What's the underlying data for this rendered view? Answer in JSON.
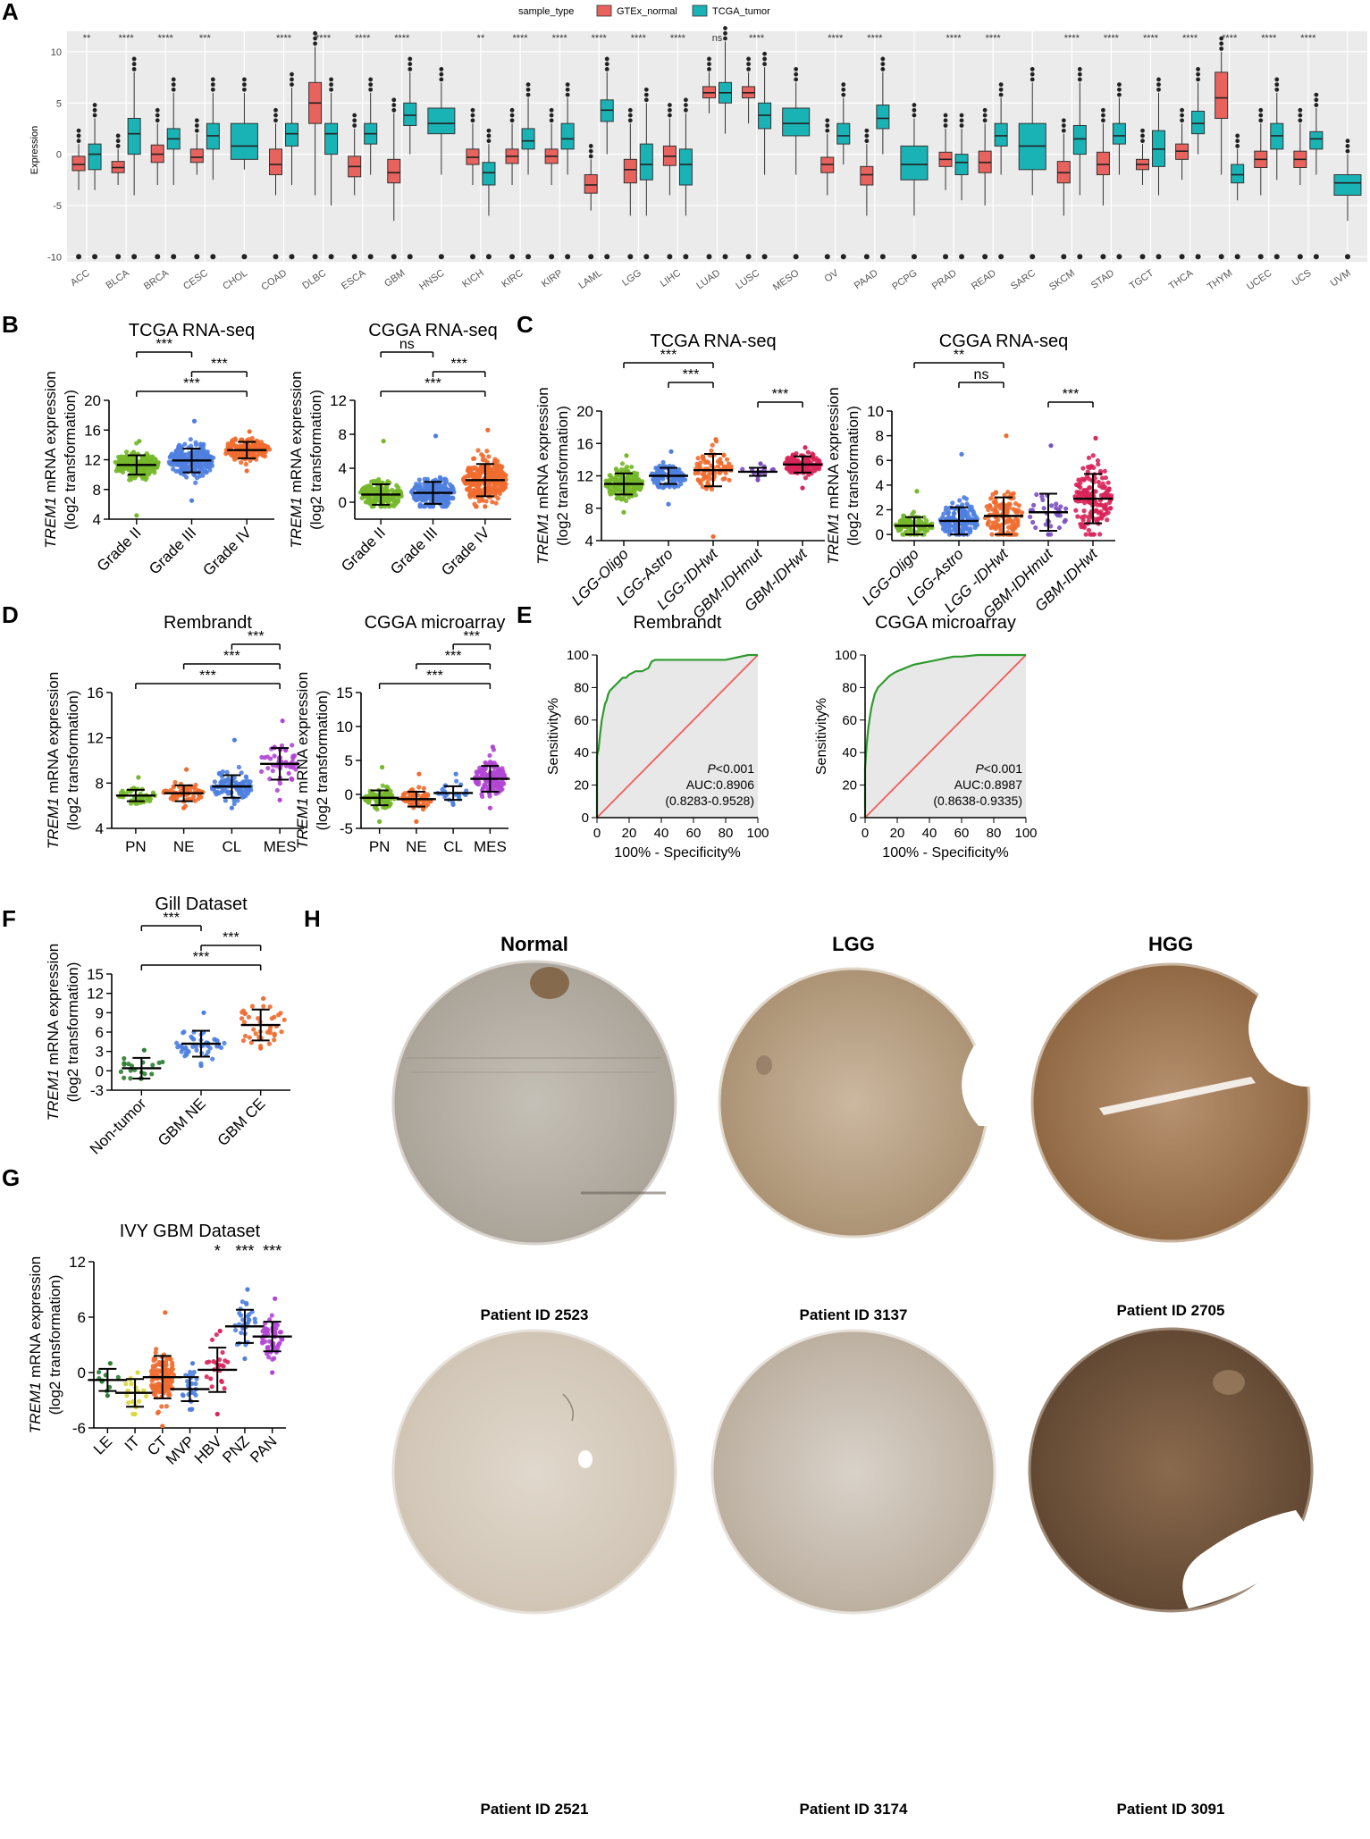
{
  "colors": {
    "normal": "#e8625e",
    "tumor": "#19b3b6",
    "green": "#76b82a",
    "blue": "#4f7fe0",
    "orange": "#ef6b2f",
    "purple": "#7b4fc0",
    "red": "#d8255a",
    "violet": "#b146d4",
    "darkgreen": "#2e7d32",
    "yellow": "#d8d83a",
    "roc_line": "#2e9a2e",
    "roc_ref": "#f05c5c"
  },
  "panelA": {
    "letter": "A",
    "legend_title": "sample_type",
    "legend_normal": "GTEx_normal",
    "legend_tumor": "TCGA_tumor",
    "ylabel": "Expression",
    "chart_data": {
      "type": "box",
      "ylim": [
        -10.5,
        12
      ],
      "yticks": [
        "-10",
        "-5",
        "0",
        "5",
        "10"
      ],
      "categories": [
        "ACC",
        "BLCA",
        "BRCA",
        "CESC",
        "CHOL",
        "COAD",
        "DLBC",
        "ESCA",
        "GBM",
        "HNSC",
        "KICH",
        "KIRC",
        "KIRP",
        "LAML",
        "LGG",
        "LIHC",
        "LUAD",
        "LUSC",
        "MESO",
        "OV",
        "PAAD",
        "PCPG",
        "PRAD",
        "READ",
        "SARC",
        "SKCM",
        "STAD",
        "TGCT",
        "THCA",
        "THYM",
        "UCEC",
        "UCS",
        "UVM"
      ],
      "significance": [
        "**",
        "****",
        "****",
        "***",
        "",
        "****",
        "****",
        "****",
        "****",
        "",
        "**",
        "****",
        "****",
        "****",
        "****",
        "****",
        "ns",
        "****",
        "",
        "****",
        "****",
        "",
        "****",
        "****",
        "",
        "****",
        "****",
        "****",
        "****",
        "****",
        "****",
        "****",
        ""
      ],
      "normal": [
        [
          -1,
          -1.6,
          -0.2,
          -3.5,
          1
        ],
        [
          -1.3,
          -1.8,
          -0.7,
          -3,
          0.5
        ],
        [
          0,
          -0.8,
          0.9,
          -3,
          3
        ],
        [
          -0.3,
          -0.8,
          0.5,
          -2,
          2
        ],
        null,
        [
          -1,
          -2,
          0.5,
          -4,
          3
        ],
        [
          5,
          3,
          7,
          -4,
          10.5
        ],
        [
          -1.2,
          -2.2,
          -0.2,
          -4,
          2.5
        ],
        [
          -1.8,
          -2.8,
          -0.5,
          -6.5,
          4
        ],
        null,
        [
          -0.3,
          -1,
          0.5,
          -3,
          3
        ],
        [
          -0.2,
          -0.9,
          0.5,
          -3,
          3
        ],
        [
          -0.2,
          -0.9,
          0.5,
          -3,
          3
        ],
        [
          -3,
          -3.8,
          -2,
          -5.5,
          -0.5
        ],
        [
          -1.5,
          -2.8,
          -0.5,
          -6,
          3
        ],
        [
          -0.2,
          -1.1,
          0.8,
          -4,
          3.5
        ],
        [
          6,
          5.5,
          6.6,
          4,
          8
        ],
        [
          6,
          5.5,
          6.6,
          3,
          8
        ],
        null,
        [
          -1,
          -1.8,
          -0.3,
          -4,
          2
        ],
        [
          -2,
          -3,
          -1.2,
          -6,
          1
        ],
        null,
        [
          -0.5,
          -1.2,
          0.2,
          -3.5,
          2.5
        ],
        [
          -0.8,
          -1.8,
          0.3,
          -5,
          3
        ],
        null,
        [
          -1.8,
          -2.8,
          -0.7,
          -6,
          2
        ],
        [
          -1,
          -2,
          0.2,
          -5,
          3
        ],
        [
          -1,
          -1.5,
          -0.5,
          -3,
          1
        ],
        [
          0.3,
          -0.5,
          1,
          -2.5,
          3
        ],
        [
          5.5,
          3.5,
          8,
          -2,
          10
        ],
        [
          -0.5,
          -1.3,
          0.3,
          -4,
          3
        ],
        [
          -0.5,
          -1.3,
          0.3,
          -3,
          3
        ],
        null
      ],
      "tumor": [
        [
          0,
          -1.5,
          1,
          -3.5,
          3.5
        ],
        [
          2,
          0,
          3.5,
          -4,
          8
        ],
        [
          1.5,
          0.5,
          2.5,
          -3,
          6
        ],
        [
          1.8,
          0.5,
          3,
          -2.5,
          6
        ],
        [
          0.8,
          -0.5,
          3,
          -1.5,
          6
        ],
        [
          2,
          0.8,
          3,
          -3,
          6.5
        ],
        [
          2,
          0,
          3,
          -5,
          6
        ],
        [
          2,
          1,
          3,
          -2,
          6
        ],
        [
          3.8,
          2.8,
          5,
          0,
          8
        ],
        [
          3,
          2,
          4.5,
          -2,
          7
        ],
        [
          -1.8,
          -3,
          -0.8,
          -6,
          1
        ],
        [
          1.3,
          0.5,
          2.5,
          -2,
          5.5
        ],
        [
          1.5,
          0.5,
          3,
          -2,
          5.5
        ],
        [
          4.3,
          3.2,
          5.3,
          0,
          8
        ],
        [
          -1,
          -2.5,
          1,
          -6,
          5
        ],
        [
          -1,
          -3,
          0.5,
          -6,
          4
        ],
        [
          6,
          5,
          7,
          2,
          11
        ],
        [
          3.8,
          2.5,
          5,
          -2,
          8.5
        ],
        [
          3,
          1.8,
          4.5,
          -2,
          7
        ],
        [
          1.8,
          1,
          3,
          -1,
          5.5
        ],
        [
          3.5,
          2.5,
          4.8,
          0,
          8
        ],
        [
          -1,
          -2.5,
          0.8,
          -6,
          3.5
        ],
        [
          -0.8,
          -2,
          0,
          -4.5,
          2.5
        ],
        [
          1.8,
          0.8,
          3,
          -2,
          5.5
        ],
        [
          0.8,
          -1.5,
          3,
          -4,
          7
        ],
        [
          1.5,
          0,
          2.8,
          -4,
          7
        ],
        [
          1.8,
          1,
          3,
          -2,
          5.5
        ],
        [
          0.5,
          -1.2,
          2.3,
          -4,
          6
        ],
        [
          3,
          2,
          4.2,
          0,
          7
        ],
        [
          -2,
          -2.8,
          -1,
          -4.5,
          0.5
        ],
        [
          1.8,
          0.5,
          3,
          -2.5,
          6
        ],
        [
          1.5,
          0.5,
          2.2,
          -2,
          4.5
        ],
        [
          -2.8,
          -4,
          -2,
          -6.5,
          0
        ]
      ]
    }
  },
  "panelB": {
    "letter": "B",
    "ylabel_gene": "TREM1",
    "ylabel_rest": " mRNA expression",
    "ylabel2": "(log2 transformation)",
    "charts": [
      {
        "title": "TCGA RNA-seq",
        "type": "scatter-dot",
        "ylim": [
          4,
          20
        ],
        "yticks": [
          "4",
          "8",
          "12",
          "16",
          "20"
        ],
        "categories": [
          "Grade II",
          "Grade III",
          "Grade IV"
        ],
        "means": [
          11.3,
          11.9,
          13.3
        ],
        "sds": [
          1.3,
          1.6,
          1.1
        ],
        "ranges": [
          [
            4.5,
            14.5
          ],
          [
            6.5,
            17.2
          ],
          [
            10.5,
            15.8
          ]
        ],
        "brackets": [
          {
            "from": 0,
            "to": 1,
            "label": "***"
          },
          {
            "from": 1,
            "to": 2,
            "label": "***"
          },
          {
            "from": 0,
            "to": 2,
            "label": "***"
          }
        ]
      },
      {
        "title": "CGGA RNA-seq",
        "type": "scatter-dot",
        "ylim": [
          -2,
          12
        ],
        "yticks": [
          "0",
          "4",
          "8",
          "12"
        ],
        "categories": [
          "Grade II",
          "Grade III",
          "Grade IV"
        ],
        "means": [
          0.9,
          1.1,
          2.6
        ],
        "sds": [
          1.2,
          1.3,
          1.9
        ],
        "ranges": [
          [
            -0.5,
            7.2
          ],
          [
            -0.5,
            7.8
          ],
          [
            -0.5,
            8.5
          ]
        ],
        "brackets": [
          {
            "from": 0,
            "to": 1,
            "label": "ns"
          },
          {
            "from": 1,
            "to": 2,
            "label": "***"
          },
          {
            "from": 0,
            "to": 2,
            "label": "***"
          }
        ]
      }
    ]
  },
  "panelC": {
    "letter": "C",
    "charts": [
      {
        "title": "TCGA RNA-seq",
        "type": "scatter-dot",
        "ylim": [
          4,
          20
        ],
        "yticks": [
          "4",
          "8",
          "12",
          "16",
          "20"
        ],
        "categories": [
          "LGG-Oligo",
          "LGG-Astro",
          "LGG-IDHwt",
          "GBM-IDHmut",
          "GBM-IDHwt"
        ],
        "means": [
          11,
          12,
          12.7,
          12.5,
          13.4
        ],
        "sds": [
          1.3,
          1,
          2,
          0.5,
          1
        ],
        "ranges": [
          [
            7.5,
            14.5
          ],
          [
            8.5,
            15
          ],
          [
            4.5,
            16.5
          ],
          [
            11.5,
            13.5
          ],
          [
            10.5,
            15.5
          ]
        ],
        "brackets": [
          {
            "from": 0,
            "to": 2,
            "label": "***"
          },
          {
            "from": 1,
            "to": 2,
            "label": "***"
          },
          {
            "from": 3,
            "to": 4,
            "label": "***"
          }
        ]
      },
      {
        "title": "CGGA RNA-seq",
        "type": "scatter-dot",
        "ylim": [
          -0.5,
          10
        ],
        "yticks": [
          "0",
          "2",
          "4",
          "6",
          "8",
          "10"
        ],
        "categories": [
          "LGG-Oligo",
          "LGG-Astro",
          "LGG -IDHwt",
          "GBM-IDHmut",
          "GBM-IDHwt"
        ],
        "means": [
          0.7,
          1.1,
          1.5,
          1.8,
          2.9
        ],
        "sds": [
          0.7,
          1.1,
          1.5,
          1.5,
          2
        ],
        "ranges": [
          [
            0,
            3.5
          ],
          [
            0,
            6.5
          ],
          [
            0,
            8
          ],
          [
            0,
            7.2
          ],
          [
            0,
            7.8
          ]
        ],
        "brackets": [
          {
            "from": 0,
            "to": 2,
            "label": "**"
          },
          {
            "from": 1,
            "to": 2,
            "label": "ns"
          },
          {
            "from": 3,
            "to": 4,
            "label": "***"
          }
        ]
      }
    ]
  },
  "panelD": {
    "letter": "D",
    "charts": [
      {
        "title": "Rembrandt",
        "type": "scatter-dot",
        "ylim": [
          4,
          16
        ],
        "yticks": [
          "4",
          "8",
          "12",
          "16"
        ],
        "categories": [
          "PN",
          "NE",
          "CL",
          "MES"
        ],
        "means": [
          6.9,
          7.1,
          7.7,
          9.7
        ],
        "sds": [
          0.5,
          0.7,
          1,
          1.4
        ],
        "ranges": [
          [
            6.2,
            8.5
          ],
          [
            5.8,
            9.2
          ],
          [
            5.8,
            11.8
          ],
          [
            6.5,
            13.5
          ]
        ],
        "brackets": [
          {
            "from": 2,
            "to": 3,
            "label": "***"
          },
          {
            "from": 1,
            "to": 3,
            "label": "***"
          },
          {
            "from": 0,
            "to": 3,
            "label": "***"
          }
        ]
      },
      {
        "title": "CGGA microarray",
        "type": "scatter-dot",
        "ylim": [
          -5,
          15
        ],
        "yticks": [
          "-5",
          "0",
          "5",
          "10",
          "15"
        ],
        "categories": [
          "PN",
          "NE",
          "CL",
          "MES"
        ],
        "means": [
          -0.5,
          -0.7,
          0.2,
          2.3
        ],
        "sds": [
          1.1,
          1.1,
          1,
          1.9
        ],
        "ranges": [
          [
            -4,
            4
          ],
          [
            -4,
            3
          ],
          [
            -1.5,
            3
          ],
          [
            -2,
            7
          ]
        ],
        "brackets": [
          {
            "from": 2,
            "to": 3,
            "label": "***"
          },
          {
            "from": 1,
            "to": 3,
            "label": "***"
          },
          {
            "from": 0,
            "to": 3,
            "label": "***"
          }
        ]
      }
    ]
  },
  "panelE": {
    "letter": "E",
    "xlabel": "100% - Specificity%",
    "ylabel": "Sensitivity%",
    "ticks": [
      "0",
      "20",
      "40",
      "60",
      "80",
      "100"
    ],
    "charts": [
      {
        "title": "Rembrandt",
        "type": "line",
        "p_label": "P",
        "p_value": "<0.001",
        "auc": "AUC:0.8906",
        "ci": "(0.8283-0.9528)",
        "x": [
          0,
          0,
          1,
          2,
          3,
          4,
          5,
          6,
          7,
          8,
          10,
          12,
          14,
          16,
          18,
          20,
          24,
          28,
          32,
          34,
          36,
          40,
          60,
          80,
          94,
          100
        ],
        "y": [
          0,
          38,
          42,
          52,
          60,
          65,
          70,
          72,
          76,
          78,
          80,
          82,
          84,
          86,
          86,
          88,
          90,
          90,
          92,
          96,
          97,
          97,
          97,
          97,
          100,
          100
        ]
      },
      {
        "title": "CGGA microarray",
        "type": "line",
        "p_label": "P",
        "p_value": "<0.001",
        "auc": "AUC:0.8987",
        "ci": "(0.8638-0.9335)",
        "x": [
          0,
          0,
          1,
          2,
          3,
          4,
          5,
          6,
          8,
          10,
          12,
          15,
          18,
          20,
          25,
          30,
          35,
          40,
          45,
          50,
          55,
          60,
          70,
          80,
          100
        ],
        "y": [
          0,
          30,
          45,
          55,
          62,
          68,
          72,
          76,
          80,
          82,
          84,
          87,
          89,
          90,
          92,
          94,
          95,
          96,
          97,
          98,
          99,
          99,
          100,
          100,
          100
        ]
      }
    ]
  },
  "panelF": {
    "letter": "F",
    "chart": {
      "title": "Gill Dataset",
      "type": "scatter-dot",
      "ylim": [
        -3,
        15
      ],
      "yticks": [
        "-3",
        "0",
        "3",
        "6",
        "9",
        "12",
        "15"
      ],
      "categories": [
        "Non-tumor",
        "GBM NE",
        "GBM CE"
      ],
      "means": [
        0.4,
        4.2,
        7.1
      ],
      "sds": [
        1.6,
        2,
        2.4
      ],
      "ranges": [
        [
          -1.2,
          3.2
        ],
        [
          0.8,
          9
        ],
        [
          3.5,
          11.2
        ]
      ],
      "brackets": [
        {
          "from": 0,
          "to": 1,
          "label": "***"
        },
        {
          "from": 1,
          "to": 2,
          "label": "***"
        },
        {
          "from": 0,
          "to": 2,
          "label": "***"
        }
      ]
    }
  },
  "panelG": {
    "letter": "G",
    "chart": {
      "title": "IVY GBM Dataset",
      "type": "scatter-dot",
      "ylim": [
        -6,
        12
      ],
      "yticks": [
        "-6",
        "0",
        "6",
        "12"
      ],
      "categories": [
        "LE",
        "IT",
        "CT",
        "MVP",
        "HBV",
        "PNZ",
        "PAN"
      ],
      "means": [
        -0.8,
        -2.2,
        -0.5,
        -1.8,
        0.3,
        5,
        3.9
      ],
      "sds": [
        1.2,
        1.5,
        2.3,
        1.3,
        2.4,
        1.8,
        1.6
      ],
      "ranges": [
        [
          -2.5,
          1
        ],
        [
          -4.5,
          0
        ],
        [
          -5.8,
          6.5
        ],
        [
          -4,
          1
        ],
        [
          -4.5,
          4.5
        ],
        [
          1.5,
          9
        ],
        [
          0,
          8
        ]
      ],
      "stars": [
        "",
        "",
        "",
        "",
        "*",
        "***",
        "***"
      ]
    }
  },
  "panelH": {
    "letter": "H",
    "columns": [
      "Normal",
      "LGG",
      "HGG"
    ],
    "patients_top": [
      "Patient ID 2523",
      "Patient ID 3137",
      "Patient ID 2705"
    ],
    "patients_bottom": [
      "Patient ID 2521",
      "Patient ID 3174",
      "Patient ID 3091"
    ]
  }
}
